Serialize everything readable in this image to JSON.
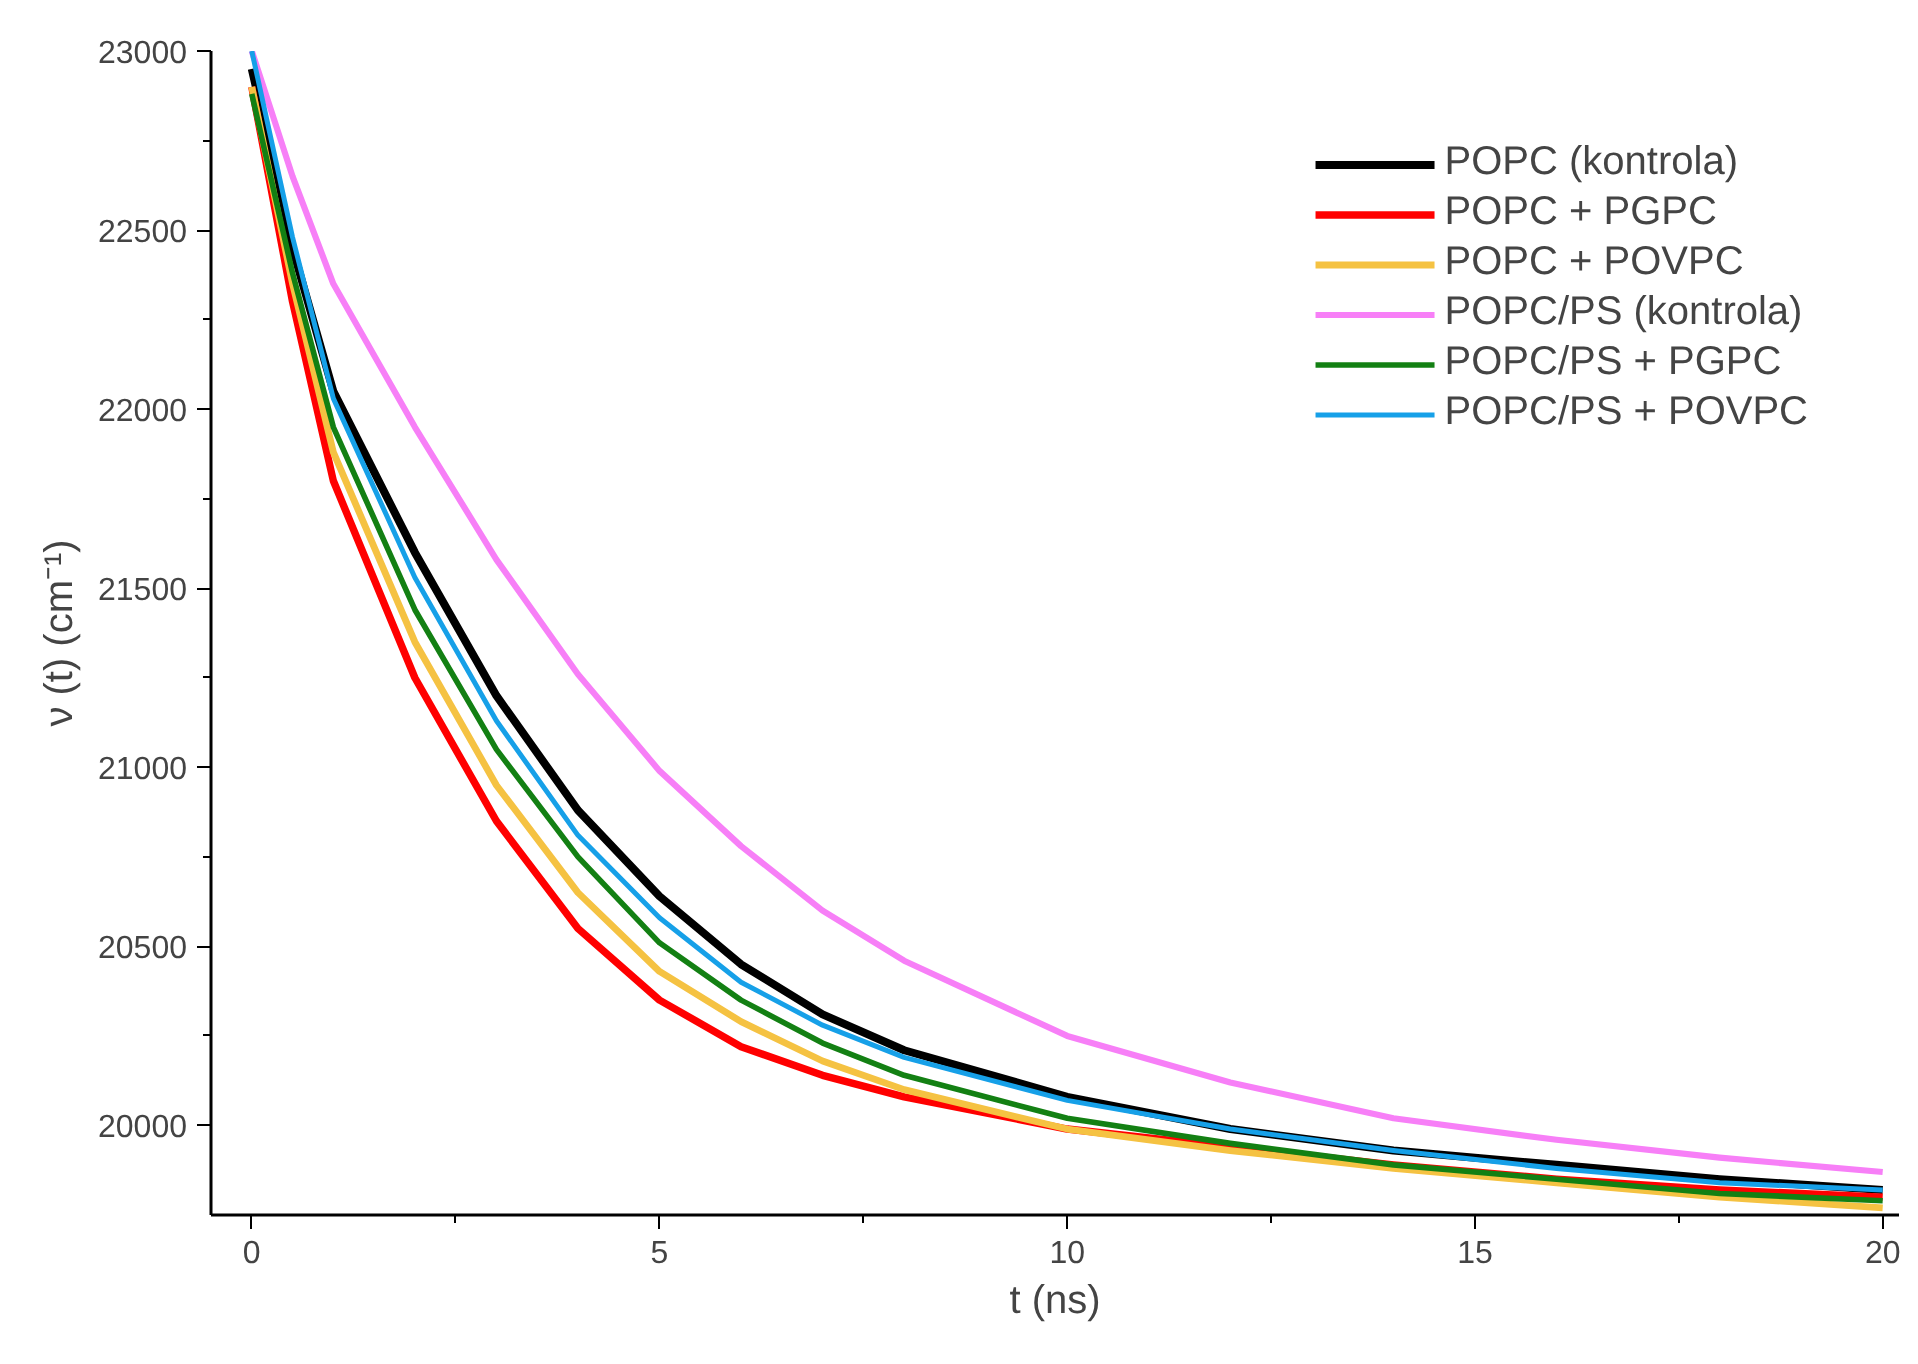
{
  "chart_data": {
    "type": "line",
    "xlabel": "t (ns)",
    "ylabel": "ν (t) (cm⁻¹)",
    "x": [
      0,
      0.5,
      1,
      2,
      3,
      4,
      5,
      6,
      7,
      8,
      10,
      12,
      14,
      16,
      18,
      20
    ],
    "series": [
      {
        "name": "POPC (kontrola)",
        "color": "#000000",
        "values": [
          22950,
          22450,
          22050,
          21600,
          21200,
          20880,
          20640,
          20450,
          20310,
          20210,
          20080,
          19990,
          19930,
          19890,
          19850,
          19820
        ]
      },
      {
        "name": "POPC + PGPC",
        "color": "#ff0000",
        "values": [
          22900,
          22300,
          21800,
          21250,
          20850,
          20550,
          20350,
          20220,
          20140,
          20080,
          19990,
          19940,
          19890,
          19850,
          19820,
          19800
        ]
      },
      {
        "name": "POPC + POVPC",
        "color": "#f5c242",
        "values": [
          22900,
          22350,
          21880,
          21350,
          20950,
          20650,
          20430,
          20290,
          20180,
          20100,
          19990,
          19930,
          19880,
          19840,
          19800,
          19770
        ]
      },
      {
        "name": "POPC/PS (kontrola)",
        "color": "#f77ff7",
        "values": [
          23000,
          22650,
          22350,
          21950,
          21580,
          21260,
          20990,
          20780,
          20600,
          20460,
          20250,
          20120,
          20020,
          19960,
          19910,
          19870
        ]
      },
      {
        "name": "POPC/PS + PGPC",
        "color": "#138013",
        "values": [
          22880,
          22380,
          21950,
          21440,
          21050,
          20750,
          20510,
          20350,
          20230,
          20140,
          20020,
          19950,
          19890,
          19850,
          19810,
          19790
        ]
      },
      {
        "name": "POPC/PS + POVPC",
        "color": "#16a0e8",
        "values": [
          23000,
          22480,
          22030,
          21530,
          21130,
          20810,
          20580,
          20400,
          20280,
          20190,
          20070,
          19990,
          19930,
          19880,
          19840,
          19820
        ]
      }
    ],
    "xlim": [
      -0.5,
      20.2
    ],
    "ylim": [
      19750,
      23000
    ],
    "xticks": [
      0,
      5,
      10,
      15,
      20
    ],
    "yticks": [
      20000,
      20500,
      21000,
      21500,
      22000,
      22500,
      23000
    ],
    "grid": false,
    "legend": "top right",
    "marker": "none",
    "line_style": "solid"
  }
}
